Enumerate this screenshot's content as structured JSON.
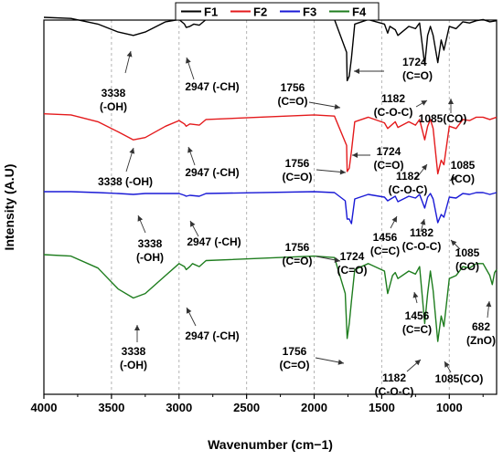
{
  "chart_data": {
    "type": "line",
    "xlabel": "Wavenumber (cm−1)",
    "ylabel": "Intensity (A.U)",
    "xlim": [
      4000,
      650
    ],
    "x_reversed": true,
    "grid": "vertical dashed",
    "legend_position": "top-center",
    "x_ticks": [
      "4000",
      "3500",
      "3000",
      "2500",
      "2000",
      "1500",
      "1000"
    ],
    "colors": {
      "F1": "#000000",
      "F2": "#e41a1c",
      "F3": "#1a1ad6",
      "F4": "#1e7d1e"
    },
    "series": [
      {
        "name": "F1",
        "color": "#000000",
        "points": [
          [
            4000,
            96
          ],
          [
            3800,
            95
          ],
          [
            3600,
            90
          ],
          [
            3450,
            83
          ],
          [
            3338,
            80
          ],
          [
            3250,
            83
          ],
          [
            3100,
            92
          ],
          [
            3000,
            94
          ],
          [
            2960,
            90
          ],
          [
            2947,
            87
          ],
          [
            2920,
            88
          ],
          [
            2890,
            90
          ],
          [
            2850,
            89
          ],
          [
            2800,
            94
          ],
          [
            2000,
            95
          ],
          [
            1850,
            94
          ],
          [
            1760,
            65
          ],
          [
            1756,
            40
          ],
          [
            1740,
            44
          ],
          [
            1724,
            60
          ],
          [
            1700,
            90
          ],
          [
            1600,
            94
          ],
          [
            1480,
            90
          ],
          [
            1456,
            82
          ],
          [
            1440,
            88
          ],
          [
            1400,
            85
          ],
          [
            1380,
            80
          ],
          [
            1300,
            88
          ],
          [
            1250,
            86
          ],
          [
            1220,
            91
          ],
          [
            1182,
            54
          ],
          [
            1160,
            80
          ],
          [
            1140,
            88
          ],
          [
            1120,
            80
          ],
          [
            1085,
            56
          ],
          [
            1060,
            76
          ],
          [
            1040,
            67
          ],
          [
            1000,
            88
          ],
          [
            950,
            86
          ],
          [
            900,
            92
          ],
          [
            850,
            91
          ],
          [
            800,
            93
          ],
          [
            750,
            94
          ],
          [
            700,
            92
          ],
          [
            650,
            93
          ]
        ]
      },
      {
        "name": "F2",
        "color": "#e41a1c",
        "points": [
          [
            4000,
            93
          ],
          [
            3800,
            92
          ],
          [
            3600,
            86
          ],
          [
            3450,
            77
          ],
          [
            3338,
            70
          ],
          [
            3250,
            72
          ],
          [
            3100,
            82
          ],
          [
            3000,
            87
          ],
          [
            2960,
            84
          ],
          [
            2947,
            82
          ],
          [
            2920,
            84
          ],
          [
            2850,
            83
          ],
          [
            2800,
            88
          ],
          [
            2000,
            92
          ],
          [
            1850,
            91
          ],
          [
            1760,
            65
          ],
          [
            1756,
            42
          ],
          [
            1740,
            45
          ],
          [
            1724,
            60
          ],
          [
            1700,
            86
          ],
          [
            1600,
            90
          ],
          [
            1480,
            85
          ],
          [
            1456,
            80
          ],
          [
            1400,
            86
          ],
          [
            1380,
            81
          ],
          [
            1300,
            86
          ],
          [
            1250,
            83
          ],
          [
            1220,
            88
          ],
          [
            1182,
            70
          ],
          [
            1160,
            82
          ],
          [
            1140,
            88
          ],
          [
            1120,
            80
          ],
          [
            1085,
            40
          ],
          [
            1060,
            52
          ],
          [
            1040,
            48
          ],
          [
            1000,
            82
          ],
          [
            950,
            80
          ],
          [
            900,
            88
          ],
          [
            850,
            87
          ],
          [
            800,
            90
          ],
          [
            750,
            90
          ],
          [
            700,
            88
          ],
          [
            650,
            90
          ]
        ]
      },
      {
        "name": "F3",
        "color": "#1a1ad6",
        "points": [
          [
            4000,
            90
          ],
          [
            3800,
            90
          ],
          [
            3600,
            89
          ],
          [
            3450,
            88
          ],
          [
            3338,
            87
          ],
          [
            3250,
            88
          ],
          [
            3100,
            88
          ],
          [
            3000,
            88
          ],
          [
            2960,
            86
          ],
          [
            2947,
            85
          ],
          [
            2920,
            86
          ],
          [
            2850,
            85
          ],
          [
            2800,
            88
          ],
          [
            2000,
            90
          ],
          [
            1850,
            89
          ],
          [
            1770,
            80
          ],
          [
            1756,
            60
          ],
          [
            1740,
            60
          ],
          [
            1724,
            55
          ],
          [
            1700,
            82
          ],
          [
            1600,
            87
          ],
          [
            1480,
            84
          ],
          [
            1456,
            80
          ],
          [
            1400,
            85
          ],
          [
            1380,
            79
          ],
          [
            1300,
            85
          ],
          [
            1250,
            83
          ],
          [
            1220,
            87
          ],
          [
            1182,
            72
          ],
          [
            1160,
            84
          ],
          [
            1140,
            88
          ],
          [
            1120,
            82
          ],
          [
            1085,
            56
          ],
          [
            1060,
            65
          ],
          [
            1040,
            62
          ],
          [
            1000,
            84
          ],
          [
            950,
            83
          ],
          [
            900,
            88
          ],
          [
            850,
            87
          ],
          [
            800,
            89
          ],
          [
            750,
            89
          ],
          [
            700,
            87
          ],
          [
            650,
            89
          ]
        ]
      },
      {
        "name": "F4",
        "color": "#1e7d1e",
        "points": [
          [
            4000,
            86
          ],
          [
            3800,
            85
          ],
          [
            3600,
            77
          ],
          [
            3450,
            63
          ],
          [
            3338,
            57
          ],
          [
            3250,
            60
          ],
          [
            3100,
            72
          ],
          [
            3000,
            80
          ],
          [
            2960,
            78
          ],
          [
            2947,
            76
          ],
          [
            2920,
            78
          ],
          [
            2900,
            80
          ],
          [
            2850,
            78
          ],
          [
            2800,
            82
          ],
          [
            2000,
            85
          ],
          [
            1850,
            84
          ],
          [
            1770,
            60
          ],
          [
            1756,
            30
          ],
          [
            1740,
            40
          ],
          [
            1724,
            55
          ],
          [
            1700,
            76
          ],
          [
            1600,
            80
          ],
          [
            1480,
            75
          ],
          [
            1456,
            60
          ],
          [
            1420,
            72
          ],
          [
            1400,
            74
          ],
          [
            1380,
            70
          ],
          [
            1300,
            75
          ],
          [
            1250,
            73
          ],
          [
            1220,
            78
          ],
          [
            1182,
            40
          ],
          [
            1160,
            60
          ],
          [
            1140,
            75
          ],
          [
            1120,
            62
          ],
          [
            1085,
            28
          ],
          [
            1060,
            45
          ],
          [
            1040,
            38
          ],
          [
            1000,
            70
          ],
          [
            950,
            72
          ],
          [
            900,
            78
          ],
          [
            850,
            77
          ],
          [
            800,
            80
          ],
          [
            750,
            80
          ],
          [
            700,
            72
          ],
          [
            682,
            66
          ],
          [
            665,
            74
          ],
          [
            650,
            76
          ]
        ]
      }
    ],
    "annotations": [
      {
        "series": "F1",
        "lines": [
          "3338",
          "(-OH)"
        ]
      },
      {
        "series": "F1",
        "lines": [
          "2947 (-CH)"
        ]
      },
      {
        "series": "F1",
        "lines": [
          "1756",
          "(C=O)"
        ]
      },
      {
        "series": "F1",
        "lines": [
          "1724",
          "(C=O)"
        ]
      },
      {
        "series": "F1",
        "lines": [
          "1182",
          "(C-O-C)"
        ]
      },
      {
        "series": "F1",
        "lines": [
          "1085(CO)"
        ]
      },
      {
        "series": "F2",
        "lines": [
          "3338 (-OH)"
        ]
      },
      {
        "series": "F2",
        "lines": [
          "2947 (-CH)"
        ]
      },
      {
        "series": "F2",
        "lines": [
          "1756",
          "(C=O)"
        ]
      },
      {
        "series": "F2",
        "lines": [
          "1724",
          "(C=O)"
        ]
      },
      {
        "series": "F2",
        "lines": [
          "1182",
          "(C-O-C)"
        ]
      },
      {
        "series": "F2",
        "lines": [
          "1085",
          "(CO)"
        ]
      },
      {
        "series": "F3",
        "lines": [
          "3338",
          "(-OH)"
        ]
      },
      {
        "series": "F3",
        "lines": [
          "2947 (-CH)"
        ]
      },
      {
        "series": "F3",
        "lines": [
          "1756",
          "(C=O)"
        ]
      },
      {
        "series": "F3",
        "lines": [
          "1724",
          "(C=O)"
        ]
      },
      {
        "series": "F3",
        "lines": [
          "1456",
          "(C=C)"
        ]
      },
      {
        "series": "F3",
        "lines": [
          "1182",
          "(C-O-C)"
        ]
      },
      {
        "series": "F3",
        "lines": [
          "1085",
          "(CO)"
        ]
      },
      {
        "series": "F4",
        "lines": [
          "3338",
          "(-OH)"
        ]
      },
      {
        "series": "F4",
        "lines": [
          "2947 (-CH)"
        ]
      },
      {
        "series": "F4",
        "lines": [
          "1756",
          "(C=O)"
        ]
      },
      {
        "series": "F4",
        "lines": [
          "1456",
          "(C=C)"
        ]
      },
      {
        "series": "F4",
        "lines": [
          "1182",
          "(C-O-C)"
        ]
      },
      {
        "series": "F4",
        "lines": [
          "1085(CO)"
        ]
      },
      {
        "series": "F4",
        "lines": [
          "682",
          "(ZnO)"
        ]
      }
    ]
  }
}
